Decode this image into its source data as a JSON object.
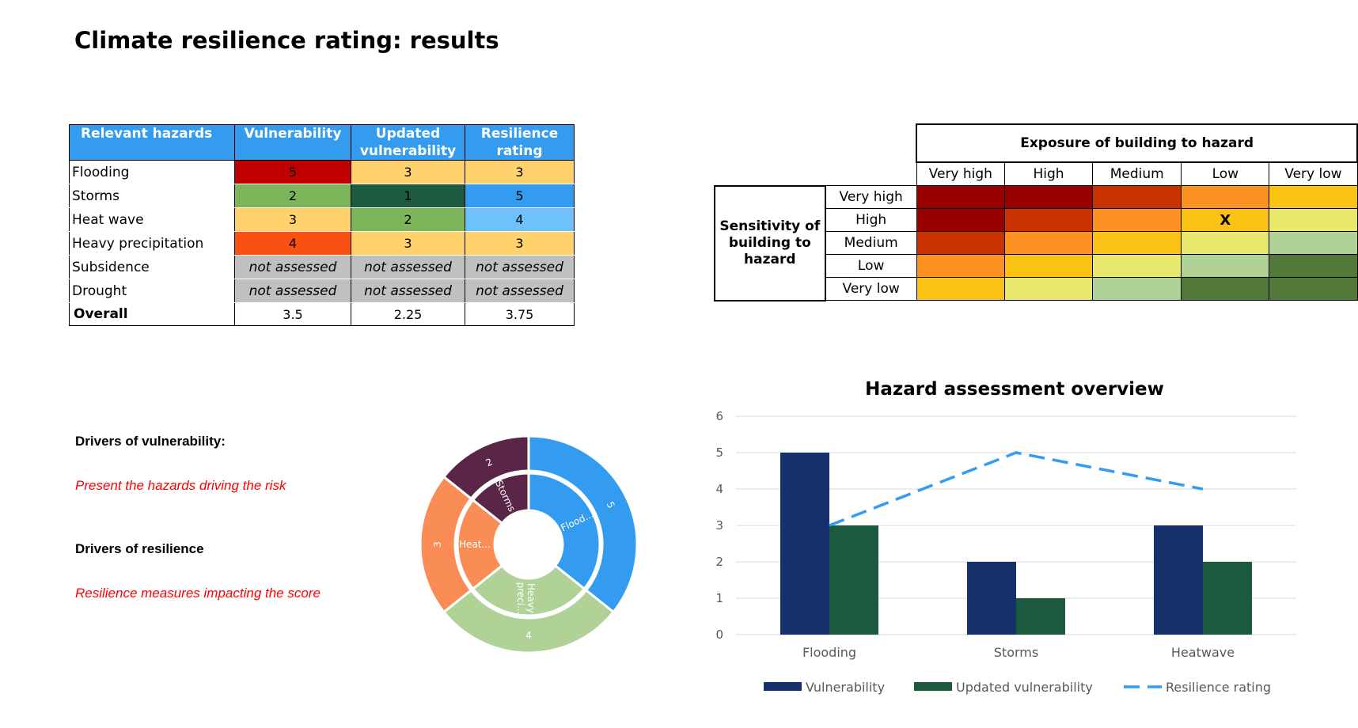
{
  "page_title": "Climate resilience rating: results",
  "results_table": {
    "headers": {
      "hazard": "Relevant hazards",
      "vulnerability": "Vulnerability",
      "updated_1": "Updated",
      "updated_2": "vulnerability",
      "resilience_1": "Resilience",
      "resilience_2": "rating"
    },
    "rows": [
      {
        "hazard": "Flooding",
        "vulnerability": "5",
        "updated": "3",
        "resilience": "3"
      },
      {
        "hazard": "Storms",
        "vulnerability": "2",
        "updated": "1",
        "resilience": "5"
      },
      {
        "hazard": "Heat wave",
        "vulnerability": "3",
        "updated": "2",
        "resilience": "4"
      },
      {
        "hazard": "Heavy precipitation",
        "vulnerability": "4",
        "updated": "3",
        "resilience": "3"
      },
      {
        "hazard": "Subsidence",
        "vulnerability": "not assessed",
        "updated": "not assessed",
        "resilience": "not assessed"
      },
      {
        "hazard": "Drought",
        "vulnerability": "not assessed",
        "updated": "not assessed",
        "resilience": "not assessed"
      }
    ],
    "overall": {
      "label": "Overall",
      "vulnerability": "3.5",
      "updated": "2.25",
      "resilience": "3.75"
    },
    "colors": {
      "header": "#339cf0",
      "v5": "#c00000",
      "v4": "#fa5012",
      "v3": "#ffd26e",
      "v2": "#7db65a",
      "v1": "#1e5a40",
      "r5": "#339cf0",
      "r4": "#6ec1fb",
      "r3": "#ffd26e",
      "na": "#c0c0c0"
    }
  },
  "matrix": {
    "exposure_title": "Exposure of building to hazard",
    "exposure_levels": [
      "Very high",
      "High",
      "Medium",
      "Low",
      "Very low"
    ],
    "sensitivity_title_1": "Sensitivity of",
    "sensitivity_title_2": "building to",
    "sensitivity_title_3": "hazard",
    "sensitivity_levels": [
      "Very high",
      "High",
      "Medium",
      "Low",
      "Very low"
    ],
    "marker": "X",
    "cell_colors": [
      [
        "#9a0000",
        "#9a0000",
        "#c83200",
        "#fa9120",
        "#fac314"
      ],
      [
        "#9a0000",
        "#c83200",
        "#fa9120",
        "#fac314",
        "#e8e86c"
      ],
      [
        "#c83200",
        "#fa9120",
        "#fac314",
        "#e8e86c",
        "#b0d296"
      ],
      [
        "#fa9120",
        "#fac314",
        "#e8e86c",
        "#b0d296",
        "#52783a"
      ],
      [
        "#fac314",
        "#e8e86c",
        "#b0d296",
        "#52783a",
        "#52783a"
      ]
    ]
  },
  "drivers": {
    "vulnerability_heading": "Drivers of vulnerability:",
    "vulnerability_text": "Present the hazards driving the risk",
    "resilience_heading": "Drivers of resilience",
    "resilience_text": "Resilience measures impacting the score"
  },
  "chart_data": [
    {
      "type": "pie",
      "variant": "sunburst",
      "title": "",
      "slices": [
        {
          "label": "Flood...",
          "value": 5,
          "inner_color": "#339cf0",
          "outer_color": "#339cf0"
        },
        {
          "label": "Heavy preci...",
          "label_1": "Heavy",
          "label_2": "preci...",
          "value": 4,
          "inner_color": "#b0d296",
          "outer_color": "#b0d296"
        },
        {
          "label": "Heat...",
          "value": 3,
          "inner_color": "#fa8c56",
          "outer_color": "#fa8c56"
        },
        {
          "label": "Storms",
          "value": 2,
          "inner_color": "#5a2547",
          "outer_color": "#5a2547"
        }
      ]
    },
    {
      "type": "bar",
      "title": "Hazard assessment overview",
      "categories": [
        "Flooding",
        "Storms",
        "Heatwave"
      ],
      "series": [
        {
          "name": "Vulnerability",
          "type": "bar",
          "values": [
            5,
            2,
            3
          ],
          "color": "#16306c"
        },
        {
          "name": "Updated vulnerability",
          "type": "bar",
          "values": [
            3,
            1,
            2
          ],
          "color": "#1c5a40"
        },
        {
          "name": "Resilience rating",
          "type": "line",
          "dashed": true,
          "values": [
            3,
            5,
            4
          ],
          "color": "#339cf0"
        }
      ],
      "ylim": [
        0,
        6
      ],
      "yticks": [
        "0",
        "1",
        "2",
        "3",
        "4",
        "5",
        "6"
      ],
      "legend": "bottom",
      "grid": true
    }
  ]
}
